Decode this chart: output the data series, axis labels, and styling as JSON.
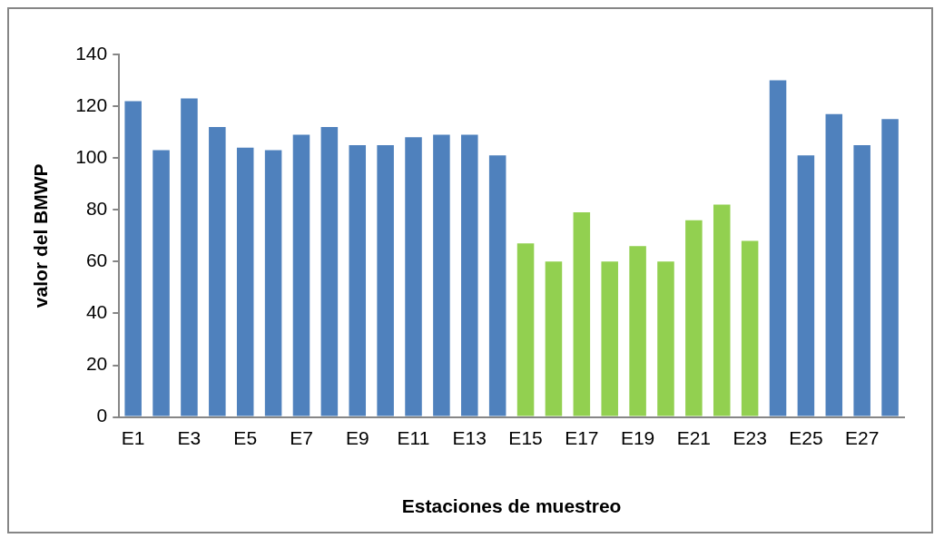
{
  "chart_data": {
    "type": "bar",
    "xlabel": "Estaciones de muestreo",
    "ylabel": "valor del BMWP",
    "categories": [
      "E1",
      null,
      "E3",
      null,
      "E5",
      null,
      "E7",
      null,
      "E9",
      null,
      "E11",
      null,
      "E13",
      null,
      "E15",
      null,
      "E17",
      null,
      "E19",
      null,
      "E21",
      null,
      "E23",
      null,
      "E25",
      null,
      "E27",
      null
    ],
    "values": [
      122,
      103,
      123,
      112,
      104,
      103,
      109,
      112,
      105,
      105,
      108,
      109,
      109,
      101,
      67,
      60,
      79,
      60,
      66,
      60,
      76,
      82,
      68,
      130,
      101,
      117,
      105,
      115
    ],
    "colors": [
      "#4f81bd",
      "#4f81bd",
      "#4f81bd",
      "#4f81bd",
      "#4f81bd",
      "#4f81bd",
      "#4f81bd",
      "#4f81bd",
      "#4f81bd",
      "#4f81bd",
      "#4f81bd",
      "#4f81bd",
      "#4f81bd",
      "#4f81bd",
      "#92d050",
      "#92d050",
      "#92d050",
      "#92d050",
      "#92d050",
      "#92d050",
      "#92d050",
      "#92d050",
      "#92d050",
      "#4f81bd",
      "#4f81bd",
      "#4f81bd",
      "#4f81bd",
      "#4f81bd"
    ],
    "ylim": [
      0,
      140
    ],
    "yticks": [
      0,
      20,
      40,
      60,
      80,
      100,
      120,
      140
    ],
    "grid": false,
    "legend": false
  }
}
